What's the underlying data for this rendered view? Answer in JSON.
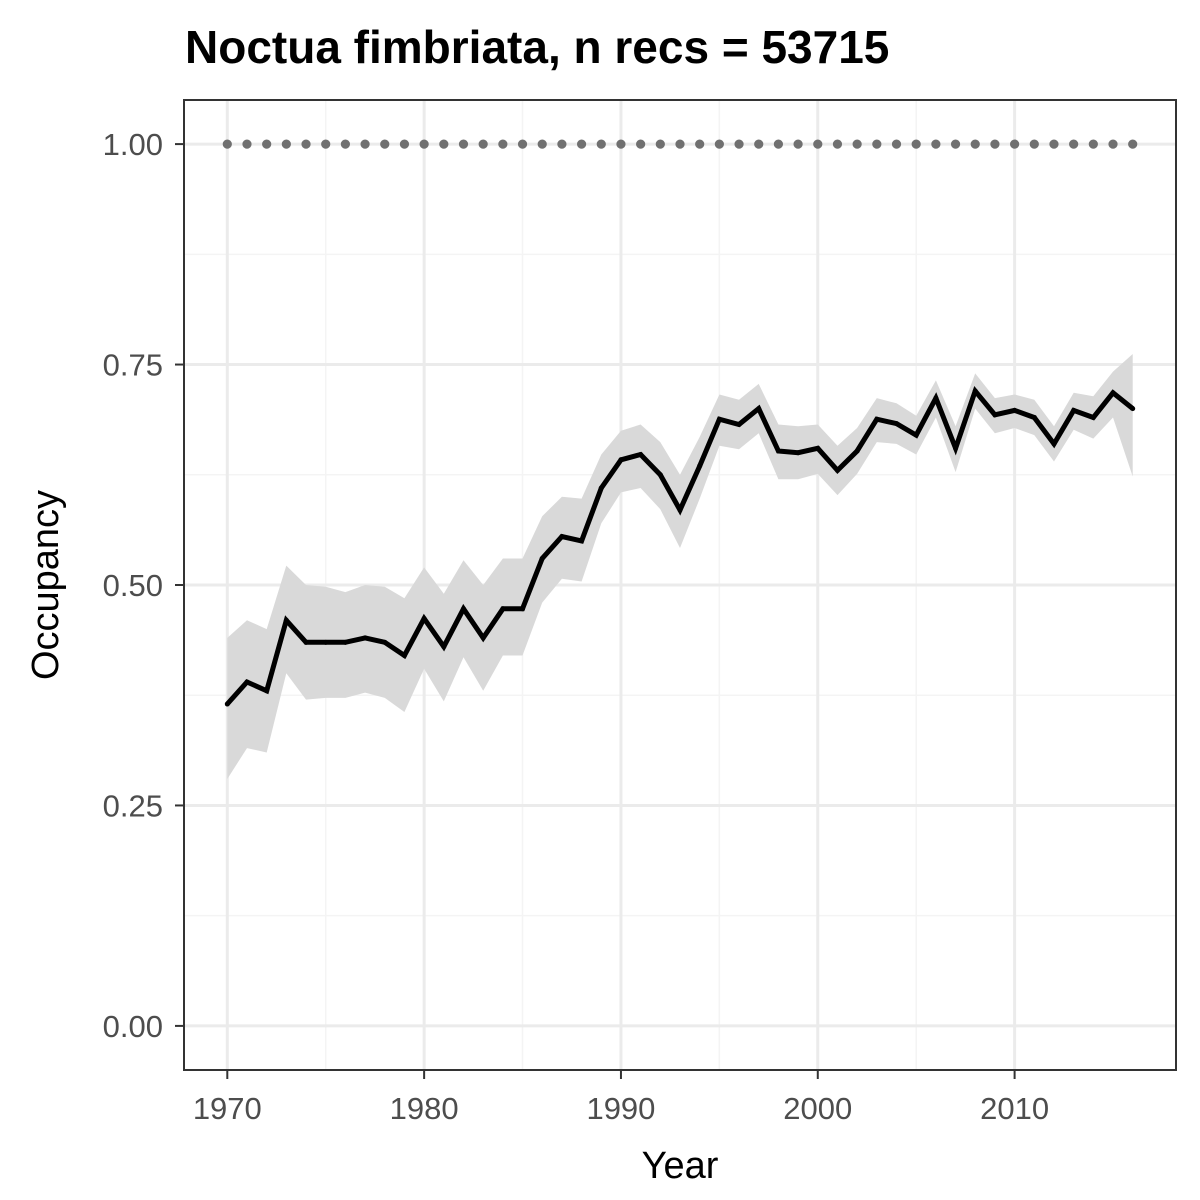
{
  "chart_data": {
    "type": "line",
    "title": "Noctua fimbriata, n recs = 53715",
    "xlabel": "Year",
    "ylabel": "Occupancy",
    "xlim": [
      1967.8,
      2018.2
    ],
    "ylim": [
      -0.05,
      1.05
    ],
    "x_ticks": [
      1970,
      1980,
      1990,
      2000,
      2010
    ],
    "x_tick_labels": [
      "1970",
      "1980",
      "1990",
      "2000",
      "2010"
    ],
    "y_ticks": [
      0.0,
      0.25,
      0.5,
      0.75,
      1.0
    ],
    "y_tick_labels": [
      "0.00",
      "0.25",
      "0.50",
      "0.75",
      "1.00"
    ],
    "grid": true,
    "colors": {
      "line": "#000000",
      "ribbon": "#d9d9d9",
      "reference": "#707070",
      "panel_border": "#333333",
      "grid_major": "#ebebeb",
      "grid_minor": "#f4f4f4"
    },
    "series": [
      {
        "type": "line",
        "x": [
          1970,
          1971,
          1972,
          1973,
          1974,
          1975,
          1976,
          1977,
          1978,
          1979,
          1980,
          1981,
          1982,
          1983,
          1984,
          1985,
          1986,
          1987,
          1988,
          1989,
          1990,
          1991,
          1992,
          1993,
          1994,
          1995,
          1996,
          1997,
          1998,
          1999,
          2000,
          2001,
          2002,
          2003,
          2004,
          2005,
          2006,
          2007,
          2008,
          2009,
          2010,
          2011,
          2012,
          2013,
          2014,
          2015,
          2016
        ],
        "values": [
          0.365,
          0.39,
          0.38,
          0.46,
          0.435,
          0.435,
          0.435,
          0.44,
          0.435,
          0.42,
          0.462,
          0.43,
          0.473,
          0.44,
          0.473,
          0.473,
          0.53,
          0.555,
          0.55,
          0.61,
          0.642,
          0.648,
          0.625,
          0.585,
          0.635,
          0.688,
          0.682,
          0.7,
          0.652,
          0.65,
          0.655,
          0.63,
          0.652,
          0.688,
          0.683,
          0.67,
          0.712,
          0.655,
          0.72,
          0.693,
          0.698,
          0.69,
          0.66,
          0.698,
          0.69,
          0.718,
          0.7
        ],
        "lower": [
          0.28,
          0.315,
          0.31,
          0.4,
          0.37,
          0.372,
          0.372,
          0.378,
          0.372,
          0.356,
          0.405,
          0.368,
          0.418,
          0.38,
          0.42,
          0.42,
          0.48,
          0.507,
          0.504,
          0.57,
          0.605,
          0.61,
          0.586,
          0.542,
          0.598,
          0.658,
          0.654,
          0.672,
          0.62,
          0.62,
          0.626,
          0.602,
          0.626,
          0.662,
          0.66,
          0.648,
          0.69,
          0.628,
          0.7,
          0.672,
          0.678,
          0.67,
          0.64,
          0.676,
          0.666,
          0.69,
          0.623
        ]
      },
      {
        "type": "ribbon_upper",
        "values": [
          0.44,
          0.46,
          0.45,
          0.522,
          0.5,
          0.498,
          0.492,
          0.5,
          0.498,
          0.485,
          0.52,
          0.49,
          0.528,
          0.5,
          0.53,
          0.53,
          0.578,
          0.6,
          0.598,
          0.648,
          0.675,
          0.682,
          0.662,
          0.625,
          0.668,
          0.716,
          0.71,
          0.728,
          0.682,
          0.68,
          0.682,
          0.658,
          0.678,
          0.712,
          0.706,
          0.692,
          0.732,
          0.68,
          0.74,
          0.712,
          0.716,
          0.71,
          0.68,
          0.718,
          0.714,
          0.742,
          0.762
        ]
      },
      {
        "type": "reference",
        "values": [
          1,
          1,
          1,
          1,
          1,
          1,
          1,
          1,
          1,
          1,
          1,
          1,
          1,
          1,
          1,
          1,
          1,
          1,
          1,
          1,
          1,
          1,
          1,
          1,
          1,
          1,
          1,
          1,
          1,
          1,
          1,
          1,
          1,
          1,
          1,
          1,
          1,
          1,
          1,
          1,
          1,
          1,
          1,
          1,
          1,
          1,
          1
        ]
      }
    ]
  }
}
